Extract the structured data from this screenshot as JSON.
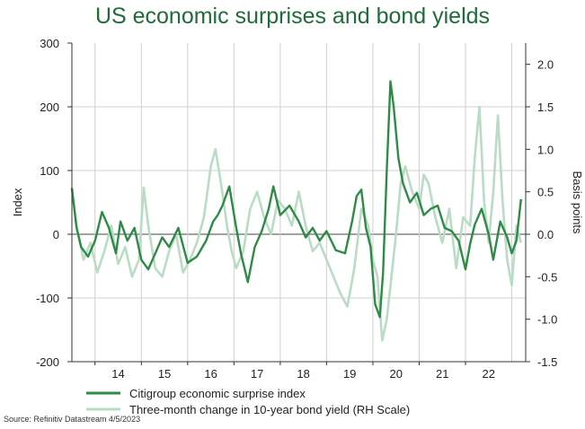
{
  "title": "US economic surprises and bond yields",
  "source": "Source: Refinitiv Datastream 4/5/2023",
  "colors": {
    "title": "#1f6b3a",
    "citi": "#2e8b46",
    "yield": "#b9dcc4",
    "grid": "#d0d0d0",
    "zero": "#444444"
  },
  "chart_data": {
    "type": "line",
    "title": "US economic surprises and bond yields",
    "ylabel": "Index",
    "y2label": "Basis points",
    "ylim": [
      -200,
      300
    ],
    "y2lim": [
      -1.5,
      2.25
    ],
    "yticks": [
      "300",
      "200",
      "100",
      "0",
      "-100",
      "-200"
    ],
    "y2ticks": [
      "2.0",
      "1.5",
      "1.0",
      "0.5",
      "0.0",
      "-0.5",
      "-1.0",
      "-1.5"
    ],
    "xticks": [
      "14",
      "15",
      "16",
      "17",
      "18",
      "19",
      "20",
      "21",
      "22"
    ],
    "grid": true,
    "legend_position": "bottom",
    "series": [
      {
        "name": "Citigroup economic surprise index",
        "axis": "left",
        "x": [
          2013.5,
          2013.6,
          2013.7,
          2013.85,
          2014.0,
          2014.15,
          2014.3,
          2014.45,
          2014.55,
          2014.7,
          2014.85,
          2015.0,
          2015.15,
          2015.3,
          2015.45,
          2015.6,
          2015.8,
          2016.0,
          2016.2,
          2016.4,
          2016.55,
          2016.65,
          2016.75,
          2016.9,
          2017.05,
          2017.15,
          2017.3,
          2017.45,
          2017.6,
          2017.75,
          2017.85,
          2018.0,
          2018.2,
          2018.4,
          2018.55,
          2018.7,
          2018.85,
          2019.0,
          2019.2,
          2019.4,
          2019.55,
          2019.65,
          2019.75,
          2019.85,
          2019.95,
          2020.05,
          2020.15,
          2020.22,
          2020.3,
          2020.38,
          2020.45,
          2020.55,
          2020.65,
          2020.8,
          2020.95,
          2021.1,
          2021.25,
          2021.4,
          2021.55,
          2021.7,
          2021.85,
          2022.0,
          2022.1,
          2022.2,
          2022.35,
          2022.5,
          2022.6,
          2022.75,
          2022.9,
          2023.0,
          2023.1,
          2023.2
        ],
        "values": [
          72,
          10,
          -20,
          -35,
          -10,
          35,
          10,
          -30,
          20,
          -10,
          10,
          -40,
          -55,
          -30,
          -5,
          -20,
          10,
          -45,
          -35,
          -10,
          20,
          30,
          45,
          75,
          10,
          -30,
          -75,
          -20,
          5,
          40,
          75,
          30,
          45,
          20,
          -5,
          10,
          -10,
          5,
          -25,
          -30,
          20,
          60,
          70,
          10,
          -20,
          -110,
          -130,
          -60,
          100,
          240,
          200,
          120,
          80,
          50,
          65,
          30,
          40,
          45,
          10,
          5,
          -10,
          -55,
          -15,
          15,
          40,
          0,
          -40,
          20,
          -5,
          -30,
          -10,
          55
        ]
      },
      {
        "name": "Three-month change in 10-year bond yield (RH Scale)",
        "axis": "right",
        "x": [
          2013.5,
          2013.6,
          2013.75,
          2013.9,
          2014.05,
          2014.2,
          2014.35,
          2014.5,
          2014.65,
          2014.8,
          2014.95,
          2015.05,
          2015.15,
          2015.3,
          2015.45,
          2015.6,
          2015.75,
          2015.9,
          2016.05,
          2016.2,
          2016.35,
          2016.5,
          2016.6,
          2016.72,
          2016.85,
          2016.95,
          2017.05,
          2017.2,
          2017.35,
          2017.5,
          2017.65,
          2017.8,
          2017.95,
          2018.1,
          2018.25,
          2018.4,
          2018.55,
          2018.7,
          2018.85,
          2019.0,
          2019.15,
          2019.3,
          2019.45,
          2019.6,
          2019.75,
          2019.9,
          2020.0,
          2020.1,
          2020.2,
          2020.3,
          2020.4,
          2020.5,
          2020.6,
          2020.7,
          2020.85,
          2021.0,
          2021.1,
          2021.2,
          2021.35,
          2021.5,
          2021.65,
          2021.8,
          2021.95,
          2022.1,
          2022.2,
          2022.3,
          2022.4,
          2022.5,
          2022.6,
          2022.7,
          2022.8,
          2022.9,
          2023.0,
          2023.1,
          2023.2
        ],
        "values": [
          0.55,
          0.1,
          -0.3,
          -0.1,
          -0.45,
          -0.2,
          0.1,
          -0.35,
          -0.15,
          -0.5,
          -0.3,
          0.55,
          0.1,
          -0.4,
          -0.5,
          -0.2,
          0.0,
          -0.45,
          -0.3,
          -0.1,
          0.2,
          0.8,
          1.0,
          0.6,
          0.1,
          -0.2,
          -0.4,
          -0.2,
          0.3,
          0.5,
          0.2,
          0.0,
          0.4,
          0.3,
          0.1,
          0.5,
          0.1,
          -0.2,
          -0.1,
          -0.3,
          -0.5,
          -0.7,
          -0.85,
          -0.4,
          0.3,
          0.1,
          -0.3,
          -0.5,
          -1.25,
          -1.0,
          -0.5,
          0.0,
          0.6,
          0.8,
          0.5,
          0.3,
          0.7,
          0.6,
          0.2,
          -0.1,
          0.3,
          -0.4,
          0.2,
          0.1,
          0.9,
          1.5,
          0.4,
          -0.1,
          0.5,
          1.4,
          0.4,
          -0.3,
          -0.6,
          0.1,
          -0.1
        ]
      }
    ]
  }
}
